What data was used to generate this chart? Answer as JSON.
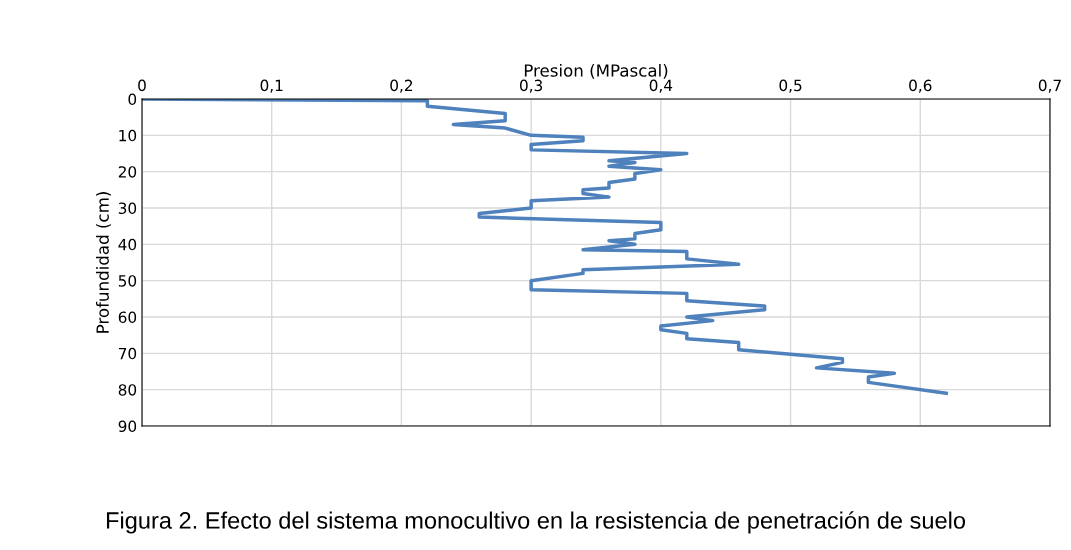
{
  "chart_data": {
    "type": "line",
    "title": "Figura 2. Efecto del sistema monocultivo en la resistencia de penetración de suelo",
    "xlabel": "Presion (MPascal)",
    "ylabel": "Profundidad (cm)",
    "xlim": [
      0,
      0.7
    ],
    "xticks": [
      {
        "value": 0,
        "label": "0"
      },
      {
        "value": 0.1,
        "label": "0,1"
      },
      {
        "value": 0.2,
        "label": "0,2"
      },
      {
        "value": 0.3,
        "label": "0,3"
      },
      {
        "value": 0.4,
        "label": "0,4"
      },
      {
        "value": 0.5,
        "label": "0,5"
      },
      {
        "value": 0.6,
        "label": "0,6"
      },
      {
        "value": 0.7,
        "label": "0,7"
      }
    ],
    "ylim": [
      90,
      0
    ],
    "yticks": [
      0,
      10,
      20,
      30,
      40,
      50,
      60,
      70,
      80,
      90
    ],
    "grid": true,
    "marker": "none",
    "line_style": "solid",
    "series": [
      {
        "color": "#4f81bd",
        "x": [
          0,
          0.22,
          0.22,
          0.28,
          0.28,
          0.24,
          0.28,
          0.3,
          0.34,
          0.34,
          0.3,
          0.3,
          0.42,
          0.36,
          0.38,
          0.36,
          0.4,
          0.38,
          0.38,
          0.36,
          0.36,
          0.34,
          0.34,
          0.36,
          0.3,
          0.3,
          0.26,
          0.26,
          0.4,
          0.4,
          0.38,
          0.38,
          0.36,
          0.38,
          0.34,
          0.42,
          0.42,
          0.46,
          0.34,
          0.34,
          0.3,
          0.3,
          0.42,
          0.42,
          0.48,
          0.48,
          0.42,
          0.44,
          0.4,
          0.4,
          0.42,
          0.42,
          0.46,
          0.46,
          0.54,
          0.54,
          0.52,
          0.58,
          0.56,
          0.56,
          0.62
        ],
        "values": [
          0,
          0.5,
          2,
          4,
          6,
          7,
          8,
          10,
          10.5,
          11.5,
          12.5,
          14,
          15,
          17,
          17.5,
          18.5,
          19.5,
          20.5,
          22,
          23,
          24.5,
          25,
          26,
          27,
          28,
          30,
          31.5,
          32.5,
          34,
          36,
          37,
          38.5,
          39,
          40,
          41.5,
          42,
          44,
          45.5,
          47,
          48,
          50,
          52.5,
          53.5,
          55.5,
          57,
          58,
          60,
          61,
          62.5,
          63.5,
          64.5,
          66,
          67,
          69,
          71.5,
          72.5,
          74,
          75.5,
          76.5,
          78,
          81
        ]
      }
    ]
  }
}
